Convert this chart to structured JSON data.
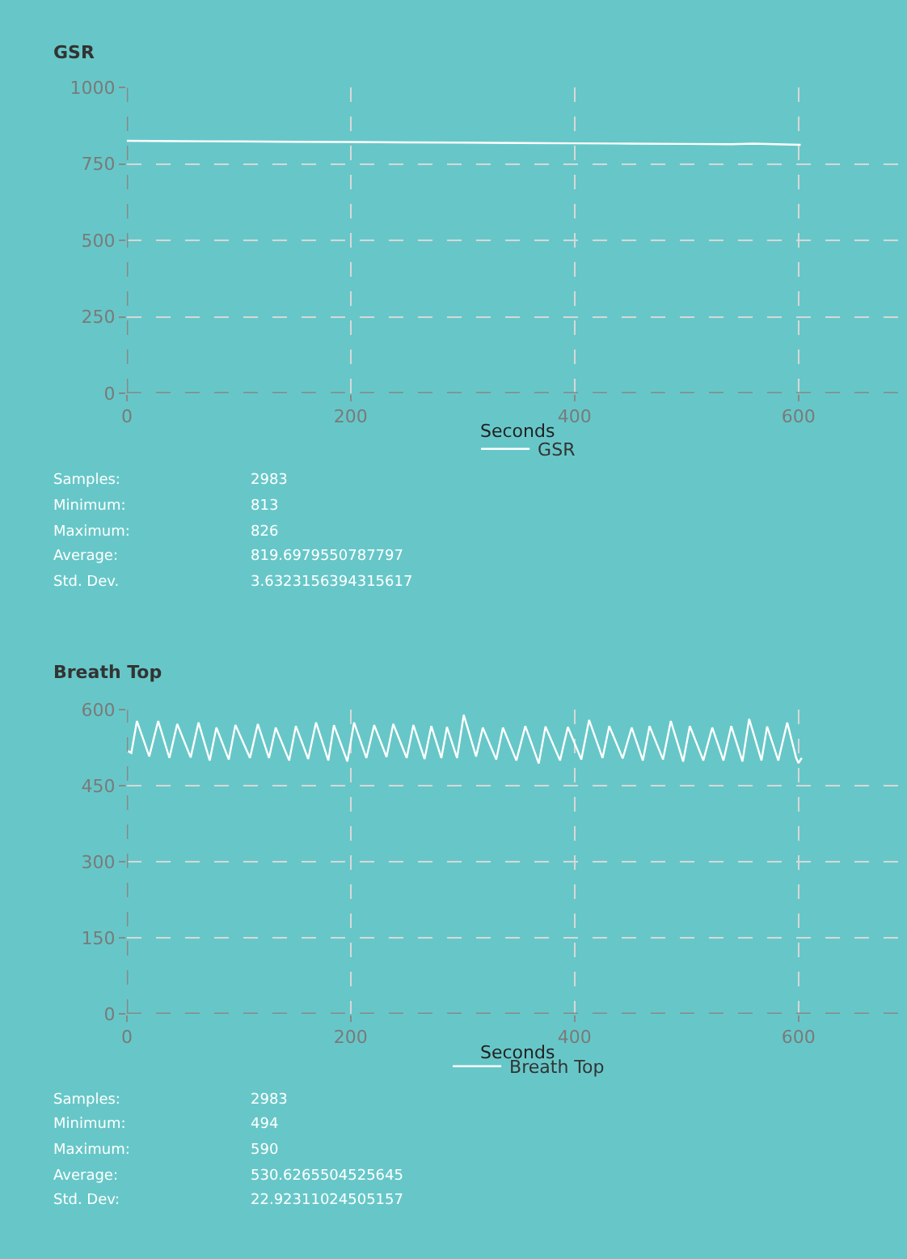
{
  "chart_data": [
    {
      "type": "line",
      "title": "GSR",
      "xlabel": "Seconds",
      "xlim": [
        0,
        697
      ],
      "xticks": [
        0,
        200,
        400,
        600
      ],
      "ylim": [
        0,
        1000
      ],
      "yticks": [
        0,
        250,
        500,
        750,
        1000
      ],
      "grid": true,
      "legend": "bottom",
      "series": [
        {
          "name": "GSR",
          "color": "#ffffff",
          "x": [
            0,
            50,
            100,
            150,
            200,
            250,
            300,
            350,
            400,
            450,
            500,
            540,
            560,
            580,
            602
          ],
          "values": [
            826,
            825,
            824,
            823,
            822,
            821,
            820,
            819,
            818,
            817,
            816,
            815,
            817,
            815,
            813
          ]
        }
      ],
      "annotations": [
        "Samples:",
        "2983",
        "Minimum:",
        "813",
        "Maximum:",
        "826",
        "Average:",
        "819.6979550787797",
        "Std. Dev.",
        "3.6323156394315617"
      ]
    },
    {
      "type": "line",
      "title": "Breath Top",
      "xlabel": "Seconds",
      "xlim": [
        0,
        697
      ],
      "xticks": [
        0,
        200,
        400,
        600
      ],
      "ylim": [
        0,
        600
      ],
      "yticks": [
        0,
        150,
        300,
        450,
        600
      ],
      "grid": true,
      "legend": "bottom",
      "series": [
        {
          "name": "Breath Top",
          "color": "#ffffff",
          "x": [
            0,
            4,
            9,
            20,
            28,
            38,
            45,
            57,
            64,
            74,
            80,
            91,
            97,
            110,
            117,
            127,
            133,
            145,
            151,
            162,
            169,
            180,
            185,
            197,
            203,
            214,
            221,
            232,
            238,
            250,
            256,
            266,
            272,
            281,
            286,
            295,
            301,
            312,
            318,
            330,
            336,
            348,
            356,
            368,
            374,
            387,
            394,
            406,
            413,
            425,
            431,
            443,
            451,
            461,
            467,
            479,
            486,
            497,
            503,
            515,
            523,
            533,
            540,
            550,
            556,
            567,
            572,
            582,
            590,
            598,
            600,
            603
          ],
          "values": [
            520,
            515,
            578,
            508,
            578,
            505,
            572,
            506,
            575,
            500,
            565,
            502,
            570,
            505,
            572,
            505,
            565,
            500,
            568,
            503,
            575,
            500,
            570,
            498,
            575,
            505,
            570,
            507,
            572,
            505,
            570,
            503,
            568,
            505,
            566,
            505,
            590,
            508,
            565,
            502,
            565,
            500,
            568,
            494,
            567,
            500,
            566,
            502,
            580,
            505,
            568,
            504,
            565,
            500,
            568,
            502,
            578,
            498,
            568,
            500,
            565,
            500,
            568,
            498,
            582,
            500,
            567,
            500,
            575,
            505,
            495,
            505
          ]
        }
      ],
      "annotations": [
        "Samples:",
        "2983",
        "Minimum:",
        "494",
        "Maximum:",
        "590",
        "Average:",
        "530.6265504525645",
        "Std. Dev:",
        "22.92311024505157"
      ]
    }
  ]
}
